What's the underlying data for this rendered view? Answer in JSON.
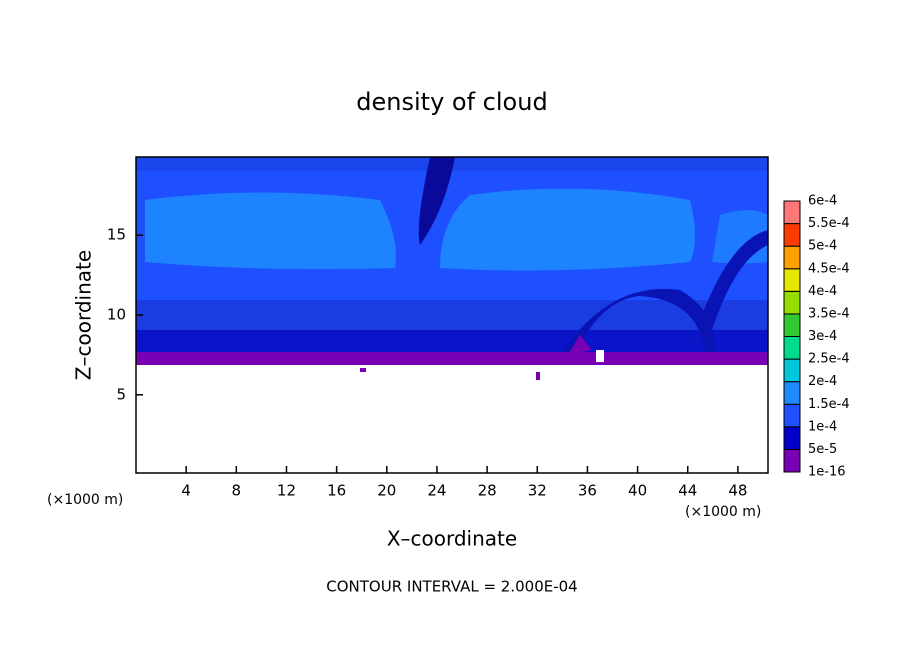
{
  "chart_data": {
    "type": "contour",
    "title": "density of cloud",
    "x_label": "X–coordinate",
    "y_label": "Z–coordinate",
    "x_unit_label": "(×1000 m)",
    "y_unit_label": "(×1000 m)",
    "annotation": "CONTOUR INTERVAL = 2.000E-04",
    "xlim": [
      0,
      50.4
    ],
    "xticks": [
      4,
      8,
      12,
      16,
      20,
      24,
      28,
      32,
      36,
      40,
      44,
      48
    ],
    "ylim": [
      0.1,
      19.9
    ],
    "yticks": [
      5,
      10,
      15
    ],
    "colorbar": {
      "lim": [
        1e-16,
        0.0006
      ],
      "ticks": [
        {
          "value": 1e-16,
          "label": "1e-16"
        },
        {
          "value": 5e-05,
          "label": "5e-5"
        },
        {
          "value": 0.0001,
          "label": "1e-4"
        },
        {
          "value": 0.00015,
          "label": "1.5e-4"
        },
        {
          "value": 0.0002,
          "label": "2e-4"
        },
        {
          "value": 0.00025,
          "label": "2.5e-4"
        },
        {
          "value": 0.0003,
          "label": "3e-4"
        },
        {
          "value": 0.00035,
          "label": "3.5e-4"
        },
        {
          "value": 0.0004,
          "label": "4e-4"
        },
        {
          "value": 0.00045,
          "label": "4.5e-4"
        },
        {
          "value": 0.0005,
          "label": "5e-4"
        },
        {
          "value": 0.00055,
          "label": "5.5e-4"
        },
        {
          "value": 0.0006,
          "label": "6e-4"
        }
      ],
      "colors": [
        "#7800b4",
        "#0000c8",
        "#1e50ff",
        "#1e8cff",
        "#00c8dc",
        "#00dc8c",
        "#32c832",
        "#96dc00",
        "#e6e600",
        "#ffa000",
        "#ff3c00",
        "#ff7878"
      ]
    }
  }
}
